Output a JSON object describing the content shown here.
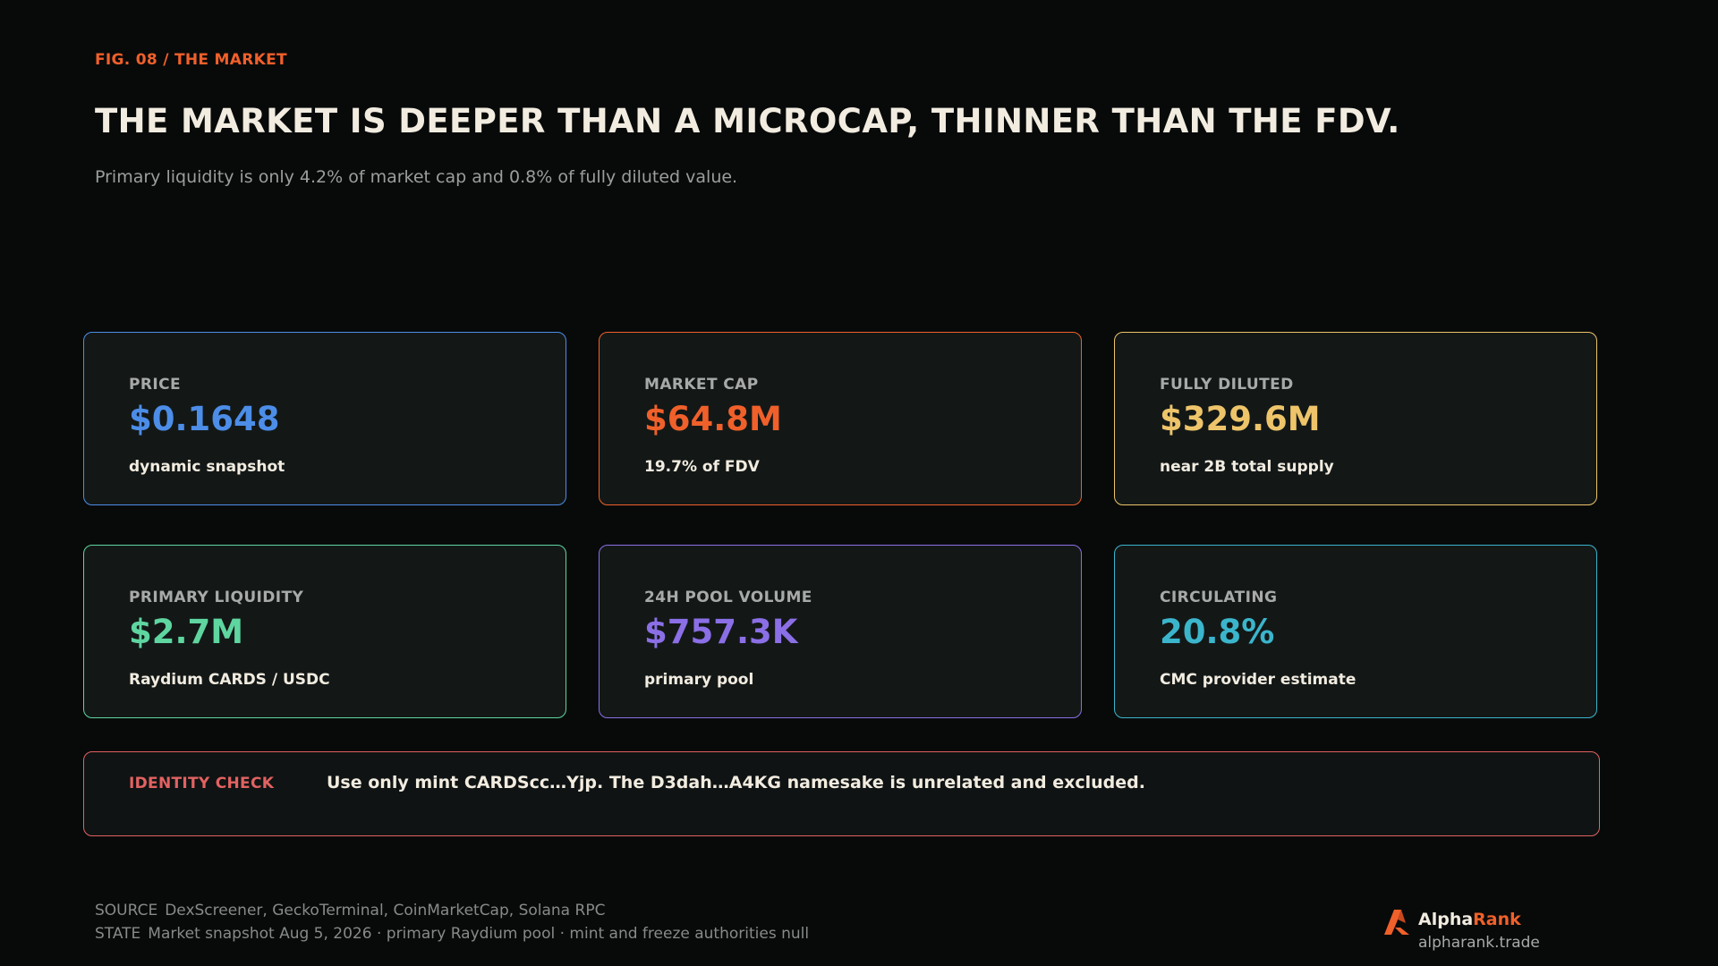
{
  "header": {
    "fig_label": "FIG. 08 / THE MARKET",
    "title": "THE MARKET IS DEEPER THAN A MICROCAP, THINNER THAN THE FDV.",
    "subtitle": "Primary liquidity is only 4.2% of market cap and 0.8% of fully diluted value."
  },
  "colors": {
    "accent": "#f0602a",
    "background": "#080a0a",
    "card_background": "#131817",
    "price": "#4c8de8",
    "market_cap": "#f0602a",
    "fully_diluted": "#eec46a",
    "primary_liquidity": "#5fd5a0",
    "pool_volume": "#8b6fe6",
    "circulating": "#3bb5cc",
    "identity": "#e26262"
  },
  "cards": [
    {
      "label": "PRICE",
      "value": "$0.1648",
      "note": "dynamic snapshot"
    },
    {
      "label": "MARKET CAP",
      "value": "$64.8M",
      "note": "19.7% of FDV"
    },
    {
      "label": "FULLY DILUTED",
      "value": "$329.6M",
      "note": "near 2B total supply"
    },
    {
      "label": "PRIMARY LIQUIDITY",
      "value": "$2.7M",
      "note": "Raydium CARDS / USDC"
    },
    {
      "label": "24H POOL VOLUME",
      "value": "$757.3K",
      "note": "primary pool"
    },
    {
      "label": "CIRCULATING",
      "value": "20.8%",
      "note": "CMC provider estimate"
    }
  ],
  "identity_check": {
    "label": "IDENTITY CHECK",
    "text": "Use only mint CARDScc…Yjp. The D3dah…A4KG namesake is unrelated and excluded."
  },
  "footer": {
    "source_tag": "SOURCE",
    "source_text": "DexScreener, GeckoTerminal, CoinMarketCap, Solana RPC",
    "state_tag": "STATE",
    "state_text": "Market snapshot Aug 5, 2026 · primary Raydium pool · mint and freeze authorities null"
  },
  "brand": {
    "name_part1": "Alpha",
    "name_part2": "Rank",
    "url": "alpharank.trade",
    "logo_icon": "alpharank-logo-icon"
  }
}
